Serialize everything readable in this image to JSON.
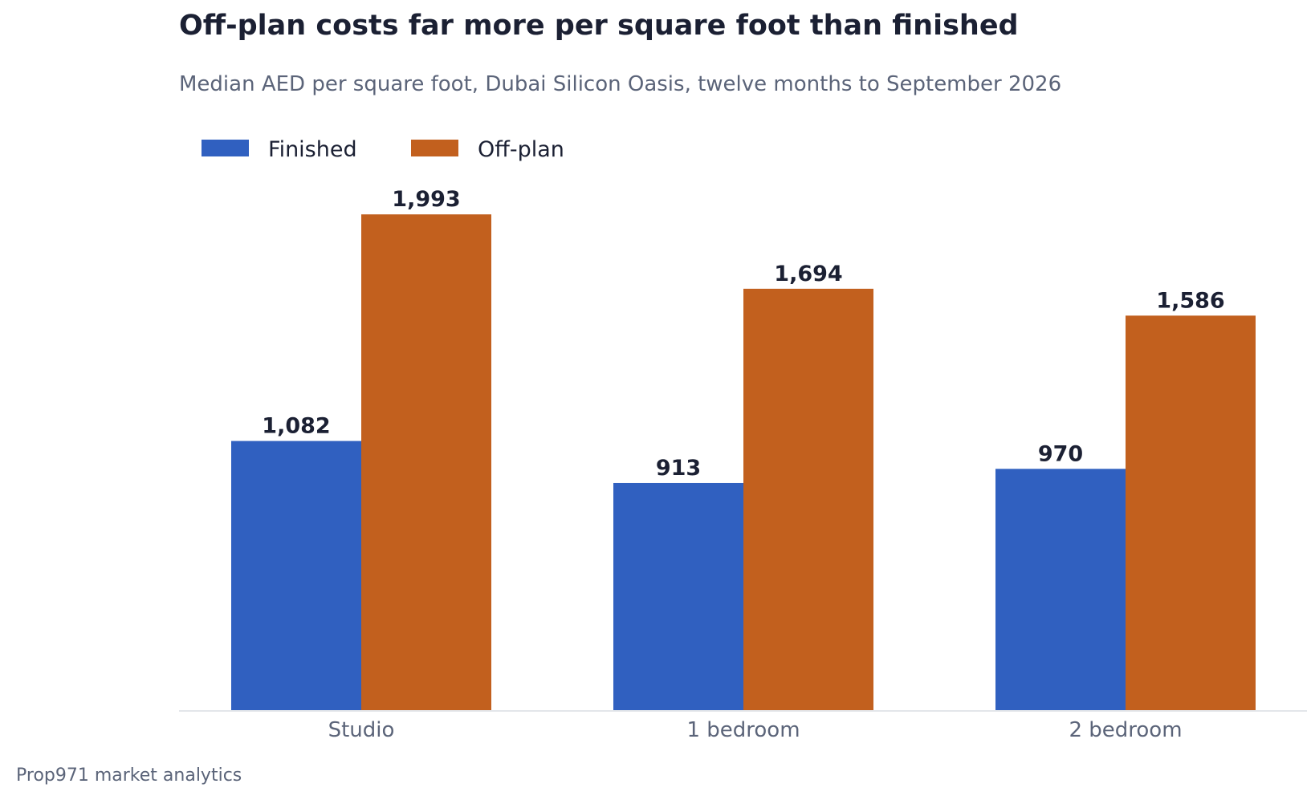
{
  "header": {
    "title": "Off-plan costs far more per square foot than finished",
    "subtitle": "Median AED per square foot, Dubai Silicon Oasis, twelve months to September 2026"
  },
  "footer": {
    "source": "Prop971 market analytics"
  },
  "chart_data": {
    "type": "bar",
    "categories": [
      "Studio",
      "1 bedroom",
      "2 bedroom"
    ],
    "series": [
      {
        "name": "Finished",
        "values": [
          1082,
          913,
          970
        ],
        "labels": [
          "1,082",
          "913",
          "970"
        ],
        "color": "#3060c0"
      },
      {
        "name": "Off-plan",
        "values": [
          1993,
          1694,
          1586
        ],
        "labels": [
          "1,993",
          "1,694",
          "1,586"
        ],
        "color": "#c2601e"
      }
    ],
    "ylim": [
      0,
      2000
    ],
    "grid": false,
    "legend": "top-left",
    "axis_color": "#e3e6ea",
    "label_color": "#1b2033",
    "tick_color": "#5b6479"
  }
}
